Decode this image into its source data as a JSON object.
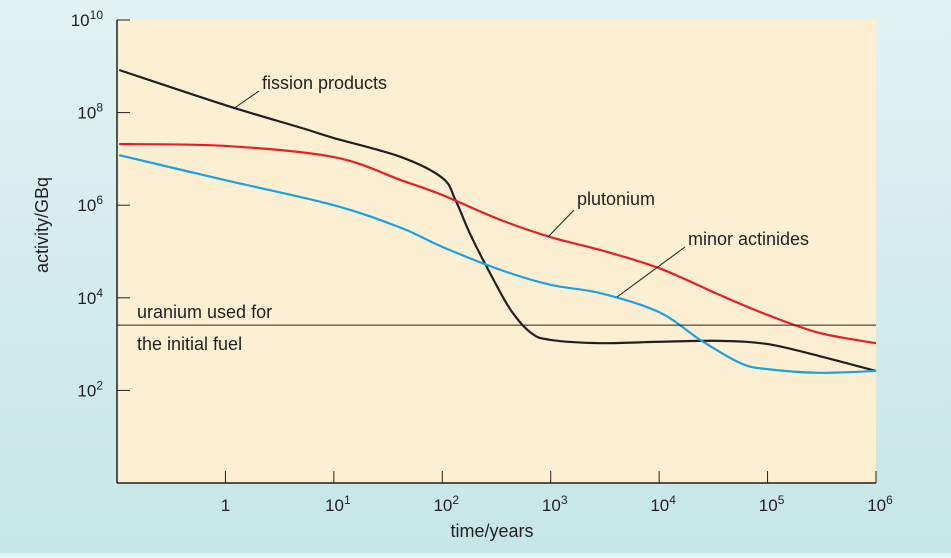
{
  "chart_data": {
    "type": "line",
    "xlabel": "time/years",
    "ylabel": "activity/GBq",
    "x_scale": "log",
    "y_scale": "log",
    "xlim": [
      0.1,
      1000000
    ],
    "ylim": [
      1,
      10000000000
    ],
    "x_ticks": [
      {
        "base": "1",
        "exp": ""
      },
      {
        "base": "10",
        "exp": "1"
      },
      {
        "base": "10",
        "exp": "2"
      },
      {
        "base": "10",
        "exp": "3"
      },
      {
        "base": "10",
        "exp": "4"
      },
      {
        "base": "10",
        "exp": "5"
      },
      {
        "base": "10",
        "exp": "6"
      }
    ],
    "y_ticks": [
      {
        "base": "10",
        "exp": "2"
      },
      {
        "base": "10",
        "exp": "4"
      },
      {
        "base": "10",
        "exp": "6"
      },
      {
        "base": "10",
        "exp": "8"
      },
      {
        "base": "10",
        "exp": "10"
      }
    ],
    "grid": false,
    "colors": {
      "background": "#fdf0d2",
      "page": "#d6eded",
      "fission": "#231f20",
      "plutonium": "#ed1c24",
      "minor": "#1ba1e2"
    },
    "series": [
      {
        "name": "fission products",
        "color": "#231f20",
        "log10_x": [
          -0.98,
          0,
          0.7,
          1,
          1.62,
          2,
          2.12,
          2.26,
          2.45,
          2.63,
          2.82,
          3,
          3.46,
          4,
          4.56,
          5,
          5.48,
          6
        ],
        "log10_y": [
          8.92,
          8.16,
          7.67,
          7.45,
          7.04,
          6.59,
          6.12,
          5.36,
          4.49,
          3.74,
          3.24,
          3.09,
          3.02,
          3.05,
          3.07,
          3.0,
          2.74,
          2.42
        ]
      },
      {
        "name": "plutonium",
        "color": "#ed1c24",
        "log10_x": [
          -0.98,
          0,
          1,
          1.62,
          2,
          2.54,
          3,
          3.46,
          4,
          4.56,
          5,
          5.48,
          6
        ],
        "log10_y": [
          7.32,
          7.28,
          7.04,
          6.54,
          6.22,
          5.68,
          5.31,
          5.03,
          4.64,
          4.06,
          3.63,
          3.24,
          3.02
        ]
      },
      {
        "name": "minor actinides",
        "color": "#1ba1e2",
        "log10_x": [
          -0.98,
          0,
          1,
          1.62,
          2,
          2.54,
          3,
          3.46,
          4,
          4.38,
          4.75,
          5,
          5.48,
          6
        ],
        "log10_y": [
          7.08,
          6.54,
          6.0,
          5.51,
          5.1,
          4.6,
          4.28,
          4.1,
          3.69,
          3.09,
          2.59,
          2.46,
          2.38,
          2.42
        ]
      }
    ],
    "reference_line": {
      "label_line1": "uranium used for",
      "label_line2": "the initial fuel",
      "log10_y": 3.41
    }
  }
}
